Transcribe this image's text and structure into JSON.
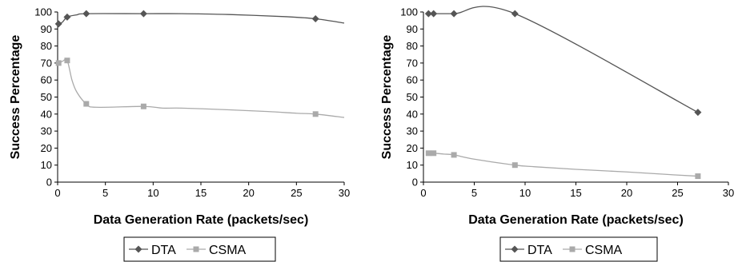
{
  "colors": {
    "dta": "#555555",
    "csma": "#aaaaaa",
    "axis": "#000000"
  },
  "chart_data": [
    {
      "type": "line",
      "xlabel": "Data Generation Rate (packets/sec)",
      "ylabel": "Success Percentage",
      "xlim": [
        0,
        30
      ],
      "ylim": [
        0,
        100
      ],
      "xticks": [
        "0",
        "5",
        "10",
        "15",
        "20",
        "25",
        "30"
      ],
      "yticks": [
        "0",
        "10",
        "20",
        "30",
        "40",
        "50",
        "60",
        "70",
        "80",
        "90",
        "100"
      ],
      "legend_position": "bottom-center",
      "grid": false,
      "series": [
        {
          "name": "DTA",
          "marker": "diamond",
          "curve": [
            [
              0.1,
              93
            ],
            [
              0.5,
              94
            ],
            [
              1,
              97
            ],
            [
              2,
              98.3
            ],
            [
              3,
              99
            ],
            [
              9,
              99
            ],
            [
              13,
              99
            ],
            [
              18,
              98.5
            ],
            [
              24,
              97.2
            ],
            [
              27,
              96
            ],
            [
              30,
              93.5
            ]
          ],
          "markers": [
            [
              0.1,
              93
            ],
            [
              1,
              97
            ],
            [
              3,
              99
            ],
            [
              9,
              99
            ],
            [
              27,
              96
            ]
          ]
        },
        {
          "name": "CSMA",
          "marker": "square",
          "curve": [
            [
              0.1,
              70
            ],
            [
              0.5,
              71
            ],
            [
              1,
              71.5
            ],
            [
              1.5,
              60
            ],
            [
              2,
              53
            ],
            [
              3,
              46
            ],
            [
              4,
              44
            ],
            [
              9,
              44.5
            ],
            [
              11,
              43.5
            ],
            [
              13,
              43.5
            ],
            [
              18,
              42.5
            ],
            [
              22,
              41.5
            ],
            [
              25,
              40.5
            ],
            [
              27,
              40
            ],
            [
              30,
              38
            ]
          ],
          "markers": [
            [
              0.1,
              70
            ],
            [
              1,
              71.5
            ],
            [
              3,
              46
            ],
            [
              9,
              44.5
            ],
            [
              27,
              40
            ]
          ]
        }
      ]
    },
    {
      "type": "line",
      "xlabel": "Data Generation Rate (packets/sec)",
      "ylabel": "Success Percentage",
      "xlim": [
        0,
        30
      ],
      "ylim": [
        0,
        100
      ],
      "xticks": [
        "0",
        "5",
        "10",
        "15",
        "20",
        "25",
        "30"
      ],
      "yticks": [
        "0",
        "10",
        "20",
        "30",
        "40",
        "50",
        "60",
        "70",
        "80",
        "90",
        "100"
      ],
      "legend_position": "bottom-center",
      "grid": false,
      "series": [
        {
          "name": "DTA",
          "marker": "diamond",
          "curve": [
            [
              0.5,
              99
            ],
            [
              1,
              99
            ],
            [
              3,
              99
            ],
            [
              9,
              99
            ],
            [
              27,
              41
            ]
          ],
          "markers": [
            [
              0.5,
              99
            ],
            [
              1,
              99
            ],
            [
              3,
              99
            ],
            [
              9,
              99
            ],
            [
              27,
              41
            ]
          ]
        },
        {
          "name": "CSMA",
          "marker": "square",
          "curve": [
            [
              0.5,
              17
            ],
            [
              1,
              17
            ],
            [
              2,
              16.5
            ],
            [
              3,
              16
            ],
            [
              5,
              13.5
            ],
            [
              9,
              10
            ],
            [
              11,
              9
            ],
            [
              15,
              7.5
            ],
            [
              20,
              6
            ],
            [
              24,
              4.5
            ],
            [
              27,
              3.5
            ]
          ],
          "markers": [
            [
              0.5,
              17
            ],
            [
              1,
              17
            ],
            [
              3,
              16
            ],
            [
              9,
              10
            ],
            [
              27,
              3.5
            ]
          ]
        }
      ]
    }
  ]
}
